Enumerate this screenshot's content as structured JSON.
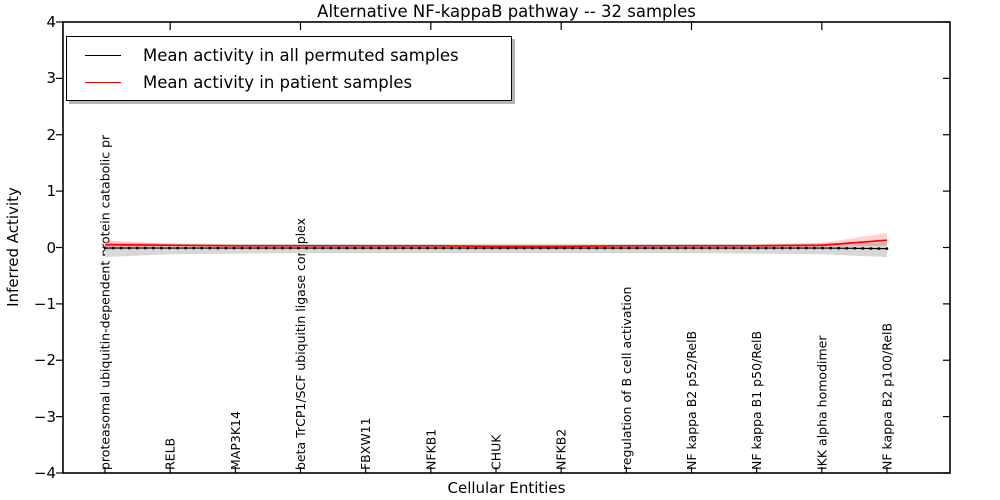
{
  "chart_data": {
    "type": "line",
    "title": "Alternative NF-kappaB pathway -- 32 samples",
    "xlabel": "Cellular Entities",
    "ylabel": "Inferred Activity",
    "ylim": [
      -4,
      4
    ],
    "ytick_labels": [
      "4",
      "3",
      "2",
      "1",
      "0",
      "−1",
      "−2",
      "−3",
      "−4"
    ],
    "grid": false,
    "legend_position": "upper left",
    "categories": [
      "proteasomal ubiquitin-dependent protein catabolic pr",
      "RELB",
      "MAP3K14",
      "beta TrCP1/SCF ubiquitin ligase complex",
      "FBXW11",
      "NFKB1",
      "CHUK",
      "NFKB2",
      "regulation of B cell activation",
      "NF kappa B2 p52/RelB",
      "NF kappa B1 p50/RelB",
      "IKK alpha homodimer",
      "NF kappa B2 p100/RelB"
    ],
    "series": [
      {
        "name": "Mean activity in all permuted samples",
        "color": "#000000",
        "marker": "square-dotted",
        "values": [
          -0.01,
          -0.01,
          -0.01,
          -0.01,
          -0.01,
          -0.01,
          -0.01,
          -0.01,
          -0.01,
          -0.01,
          -0.01,
          -0.01,
          -0.02
        ],
        "band_upper": [
          0.09,
          0.07,
          0.06,
          0.06,
          0.06,
          0.06,
          0.06,
          0.06,
          0.06,
          0.06,
          0.06,
          0.07,
          0.09
        ],
        "band_lower": [
          -0.17,
          -0.12,
          -0.11,
          -0.1,
          -0.1,
          -0.1,
          -0.1,
          -0.1,
          -0.1,
          -0.1,
          -0.11,
          -0.12,
          -0.17
        ],
        "band_color": "#d8d8d8"
      },
      {
        "name": "Mean activity in patient samples",
        "color": "#ff0000",
        "marker": "none",
        "values": [
          0.05,
          0.04,
          0.03,
          0.03,
          0.03,
          0.03,
          0.02,
          0.02,
          0.03,
          0.03,
          0.03,
          0.04,
          0.13
        ],
        "band_upper": [
          0.13,
          0.06,
          0.05,
          0.05,
          0.04,
          0.04,
          0.04,
          0.04,
          0.04,
          0.05,
          0.05,
          0.08,
          0.26
        ],
        "band_lower": [
          -0.04,
          0.02,
          0.02,
          0.02,
          0.01,
          0.01,
          0.01,
          0.01,
          0.01,
          0.02,
          0.02,
          0.01,
          0.03
        ],
        "band_color": "rgba(255,0,0,0.18)"
      }
    ]
  }
}
